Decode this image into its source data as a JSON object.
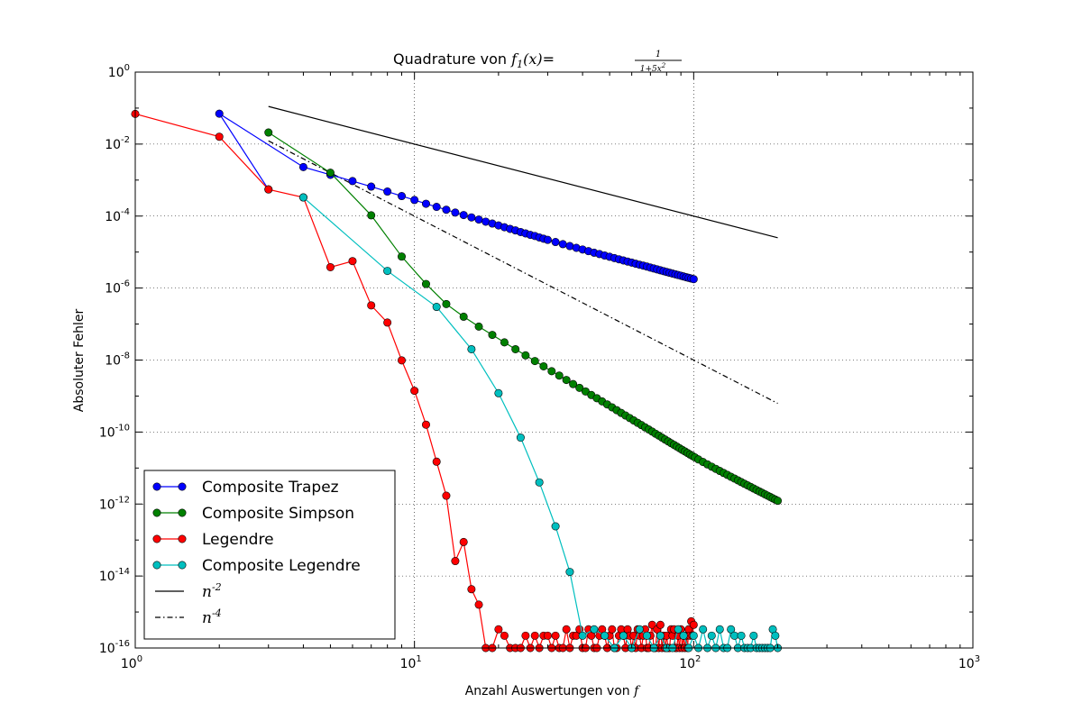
{
  "chart_data": {
    "type": "line",
    "title": {
      "prefix": "Quadrature von ",
      "func": "f",
      "sub": "1",
      "arg": "(x)",
      "eq": "=",
      "numerator": "1",
      "denominator": "1+5x",
      "denominator_exp": "2"
    },
    "xlabel": {
      "text": "Anzahl Auswertungen von ",
      "math": "f"
    },
    "ylabel": "Absoluter Fehler",
    "xscale": "log",
    "yscale": "log",
    "xlim": [
      1,
      1000
    ],
    "ylim": [
      1e-16,
      1
    ],
    "grid": true,
    "legend_placement": "lower-left",
    "x_ticks": [
      {
        "base": "10",
        "exp": "0"
      },
      {
        "base": "10",
        "exp": "1"
      },
      {
        "base": "10",
        "exp": "2"
      },
      {
        "base": "10",
        "exp": "3"
      }
    ],
    "y_ticks": [
      {
        "base": "10",
        "exp": "0"
      },
      {
        "base": "10",
        "exp": "-2"
      },
      {
        "base": "10",
        "exp": "-4"
      },
      {
        "base": "10",
        "exp": "-6"
      },
      {
        "base": "10",
        "exp": "-8"
      },
      {
        "base": "10",
        "exp": "-10"
      },
      {
        "base": "10",
        "exp": "-12"
      },
      {
        "base": "10",
        "exp": "-14"
      },
      {
        "base": "10",
        "exp": "-16"
      }
    ],
    "series": [
      {
        "name": "Composite Trapez",
        "color": "#0000ff",
        "style": "line-marker",
        "x": [
          3,
          2,
          4,
          5,
          6,
          7,
          8,
          9,
          10,
          11,
          12,
          13,
          14,
          15,
          16,
          17,
          18,
          19,
          20,
          21,
          22,
          23,
          24,
          25,
          26,
          27,
          28,
          29,
          30,
          32,
          34,
          36,
          38,
          40,
          42,
          44,
          46,
          48,
          50,
          52,
          54,
          56,
          58,
          60,
          62,
          64,
          66,
          68,
          70,
          72,
          74,
          76,
          78,
          80,
          82,
          84,
          86,
          88,
          90,
          92,
          94,
          96,
          98,
          100
        ],
        "y": [
          0.00055,
          0.07,
          0.0023,
          0.0014,
          0.00094,
          0.00066,
          0.00048,
          0.00036,
          0.00028,
          0.00022,
          0.00018,
          0.00015,
          0.000125,
          0.000107,
          9.2e-05,
          8e-05,
          7e-05,
          6.2e-05,
          5.5e-05,
          4.9e-05,
          4.4e-05,
          4e-05,
          3.6e-05,
          3.3e-05,
          3e-05,
          2.8e-05,
          2.55e-05,
          2.35e-05,
          2.18e-05,
          1.9e-05,
          1.66e-05,
          1.47e-05,
          1.31e-05,
          1.18e-05,
          1.06e-05,
          9.6e-06,
          8.8e-06,
          8e-06,
          7.4e-06,
          6.8e-06,
          6.3e-06,
          5.85e-06,
          5.45e-06,
          5.1e-06,
          4.75e-06,
          4.45e-06,
          4.2e-06,
          3.95e-06,
          3.7e-06,
          3.5e-06,
          3.3e-06,
          3.12e-06,
          2.95e-06,
          2.8e-06,
          2.66e-06,
          2.53e-06,
          2.41e-06,
          2.3e-06,
          2.2e-06,
          2.1e-06,
          2e-06,
          1.92e-06,
          1.84e-06,
          1.77e-06
        ]
      },
      {
        "name": "Composite Simpson",
        "color": "#008000",
        "style": "line-marker",
        "x": [
          3,
          5,
          7,
          9,
          11,
          13,
          15,
          17,
          19,
          21,
          23,
          25,
          27,
          29,
          31,
          33,
          35,
          37,
          39,
          41,
          43,
          45,
          47,
          49,
          51,
          53,
          55,
          57,
          59,
          61,
          63,
          65,
          67,
          69,
          71,
          73,
          75,
          77,
          79,
          81,
          83,
          85,
          87,
          89,
          91,
          93,
          95,
          97,
          99,
          101,
          104,
          108,
          112,
          116,
          120,
          124,
          128,
          132,
          136,
          140,
          144,
          148,
          152,
          156,
          160,
          164,
          168,
          172,
          176,
          180,
          184,
          188,
          192,
          196,
          200
        ],
        "y": [
          0.021,
          0.0016,
          0.000105,
          7.5e-06,
          1.3e-06,
          3.6e-07,
          1.6e-07,
          8.5e-08,
          5e-08,
          3.1e-08,
          2e-08,
          1.35e-08,
          9.4e-09,
          6.7e-09,
          4.9e-09,
          3.7e-09,
          2.8e-09,
          2.15e-09,
          1.69e-09,
          1.34e-09,
          1.07e-09,
          8.7e-10,
          7.1e-10,
          5.85e-10,
          4.85e-10,
          4.05e-10,
          3.4e-10,
          2.88e-10,
          2.45e-10,
          2.1e-10,
          1.8e-10,
          1.56e-10,
          1.35e-10,
          1.18e-10,
          1.03e-10,
          9e-11,
          7.95e-11,
          7e-11,
          6.2e-11,
          5.5e-11,
          4.9e-11,
          4.4e-11,
          3.95e-11,
          3.55e-11,
          3.2e-11,
          2.9e-11,
          2.62e-11,
          2.38e-11,
          2.17e-11,
          1.98e-11,
          1.73e-11,
          1.47e-11,
          1.26e-11,
          1.09e-11,
          9.5e-12,
          8.3e-12,
          7.3e-12,
          6.45e-12,
          5.7e-12,
          5.1e-12,
          4.55e-12,
          4.07e-12,
          3.65e-12,
          3.3e-12,
          2.98e-12,
          2.7e-12,
          2.45e-12,
          2.23e-12,
          2.04e-12,
          1.86e-12,
          1.71e-12,
          1.57e-12,
          1.44e-12,
          1.33e-12,
          1.23e-12
        ]
      },
      {
        "name": "Legendre",
        "color": "#ff0000",
        "style": "line-marker",
        "x": [
          1,
          2,
          3,
          4,
          5,
          6,
          7,
          8,
          9,
          10,
          11,
          12,
          13,
          14,
          15,
          16,
          17,
          18,
          19,
          20,
          21,
          22,
          23,
          24,
          25,
          26,
          27,
          28,
          29,
          30,
          31,
          32,
          33,
          34,
          35,
          36,
          37,
          38,
          39,
          40,
          41,
          42,
          43,
          44,
          45,
          46,
          47,
          48,
          49,
          50,
          51,
          52,
          53,
          54,
          55,
          56,
          57,
          58,
          59,
          60,
          61,
          62,
          63,
          64,
          65,
          66,
          67,
          68,
          69,
          70,
          71,
          72,
          73,
          74,
          75,
          76,
          77,
          78,
          79,
          80,
          81,
          82,
          83,
          84,
          85,
          86,
          87,
          88,
          89,
          90,
          91,
          92,
          93,
          94,
          95,
          96,
          97,
          98,
          99,
          100
        ],
        "y": [
          0.069,
          0.016,
          0.00055,
          0.00033,
          3.8e-06,
          5.6e-06,
          3.3e-07,
          1.1e-07,
          9.8e-09,
          1.4e-09,
          1.6e-10,
          1.5e-11,
          1.7e-12,
          2.6e-14,
          8.8e-14,
          4.3e-15,
          1.6e-15,
          1e-16,
          1e-16,
          3.3e-16,
          2.2e-16,
          1e-16,
          1e-16,
          1e-16,
          2.2e-16,
          1e-16,
          2.2e-16,
          1e-16,
          2.2e-16,
          2.2e-16,
          1e-16,
          2.2e-16,
          1e-16,
          1e-16,
          3.3e-16,
          1e-16,
          2.2e-16,
          2.2e-16,
          3.3e-16,
          1e-16,
          1e-16,
          3.3e-16,
          2.2e-16,
          1e-16,
          1e-16,
          2.2e-16,
          3.3e-16,
          2.2e-16,
          1e-16,
          2.2e-16,
          3.3e-16,
          1e-16,
          1e-16,
          2.2e-16,
          3.3e-16,
          2.2e-16,
          1e-16,
          3.3e-16,
          2.2e-16,
          1e-16,
          2.2e-16,
          1e-16,
          3.3e-16,
          2.2e-16,
          1e-16,
          2.2e-16,
          3.3e-16,
          1e-16,
          1e-16,
          2.2e-16,
          4.4e-16,
          1e-16,
          1e-16,
          3.3e-16,
          1e-16,
          4.4e-16,
          1e-16,
          2.2e-16,
          1e-16,
          2.2e-16,
          1e-16,
          1e-16,
          3.3e-16,
          2.2e-16,
          3.3e-16,
          1e-16,
          1e-16,
          2.2e-16,
          1e-16,
          3.3e-16,
          1e-16,
          2.2e-16,
          1e-16,
          2.2e-16,
          1e-16,
          3.3e-16,
          2.2e-16,
          5.5e-16,
          2.2e-16,
          4.4e-16
        ]
      },
      {
        "name": "Composite Legendre",
        "color": "#00bfbf",
        "style": "line-marker",
        "x": [
          4,
          8,
          12,
          16,
          20,
          24,
          28,
          32,
          36,
          40,
          44,
          48,
          52,
          56,
          60,
          64,
          68,
          72,
          76,
          80,
          84,
          88,
          92,
          96,
          100,
          104,
          108,
          112,
          116,
          120,
          124,
          128,
          132,
          136,
          140,
          144,
          148,
          152,
          156,
          160,
          164,
          168,
          172,
          176,
          180,
          184,
          188,
          192,
          196,
          200
        ],
        "y": [
          0.00033,
          3e-06,
          3e-07,
          2e-08,
          1.2e-09,
          7e-11,
          4e-12,
          2.4e-13,
          1.3e-14,
          2.2e-16,
          3.3e-16,
          2.2e-16,
          1e-16,
          2.2e-16,
          1e-16,
          3.3e-16,
          2.2e-16,
          1e-16,
          2.2e-16,
          1e-16,
          1e-16,
          3.3e-16,
          2.2e-16,
          1e-16,
          2.2e-16,
          1e-16,
          3.3e-16,
          1e-16,
          2.2e-16,
          1e-16,
          3.3e-16,
          1e-16,
          1e-16,
          3.3e-16,
          2.2e-16,
          1e-16,
          2.2e-16,
          1e-16,
          1e-16,
          1e-16,
          2.2e-16,
          1e-16,
          1e-16,
          1e-16,
          1e-16,
          1e-16,
          1e-16,
          3.3e-16,
          2.2e-16,
          1e-16
        ]
      },
      {
        "name": "n",
        "name_exp": "-2",
        "color": "#000000",
        "style": "solid",
        "x": [
          3,
          200
        ],
        "y": [
          0.111,
          2.5e-05
        ]
      },
      {
        "name": "n",
        "name_exp": "-4",
        "color": "#000000",
        "style": "dashdot",
        "x": [
          3,
          200
        ],
        "y": [
          0.0123,
          6.25e-10
        ]
      }
    ]
  }
}
